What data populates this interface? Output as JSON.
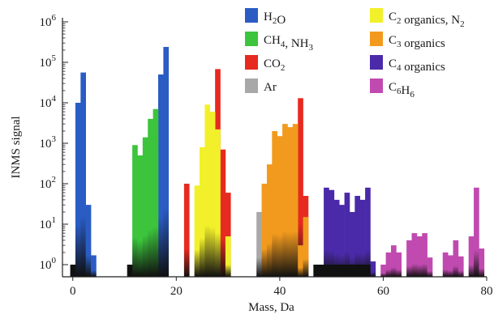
{
  "chart_data": {
    "type": "bar",
    "xlabel": "Mass, Da",
    "ylabel": "INMS signal",
    "xlim": [
      -2,
      80
    ],
    "ylim_log10": [
      -0.3,
      6.1
    ],
    "y_scale": "log",
    "x_ticks": [
      0,
      20,
      40,
      60,
      80
    ],
    "y_tick_labels": [
      {
        "exp": 0,
        "base": "10",
        "sup": "0"
      },
      {
        "exp": 1,
        "base": "10",
        "sup": "1"
      },
      {
        "exp": 2,
        "base": "10",
        "sup": "2"
      },
      {
        "exp": 3,
        "base": "10",
        "sup": "3"
      },
      {
        "exp": 4,
        "base": "10",
        "sup": "4"
      },
      {
        "exp": 5,
        "base": "10",
        "sup": "5"
      },
      {
        "exp": 6,
        "base": "10",
        "sup": "6"
      }
    ],
    "legend_position": "top-right",
    "legend": [
      {
        "key": "h2o",
        "parts": [
          [
            "H",
            "n"
          ],
          [
            "2",
            "sub"
          ],
          [
            "O",
            "n"
          ]
        ],
        "color": "#2a5cc4"
      },
      {
        "key": "ch4nh3",
        "parts": [
          [
            "CH",
            "n"
          ],
          [
            "4",
            "sub"
          ],
          [
            ", NH",
            "n"
          ],
          [
            "3",
            "sub"
          ]
        ],
        "color": "#3cc43c"
      },
      {
        "key": "co2",
        "parts": [
          [
            "CO",
            "n"
          ],
          [
            "2",
            "sub"
          ]
        ],
        "color": "#e62a20"
      },
      {
        "key": "ar",
        "parts": [
          [
            "Ar",
            "n"
          ]
        ],
        "color": "#a8a8a8"
      },
      {
        "key": "c2",
        "parts": [
          [
            "C",
            "n"
          ],
          [
            "2",
            "sub"
          ],
          [
            " organics, N",
            "n"
          ],
          [
            "2",
            "sub"
          ]
        ],
        "color": "#f2f02a"
      },
      {
        "key": "c3",
        "parts": [
          [
            "C",
            "n"
          ],
          [
            "3",
            "sub"
          ],
          [
            " organics",
            "n"
          ]
        ],
        "color": "#f29a1e"
      },
      {
        "key": "c4",
        "parts": [
          [
            "C",
            "n"
          ],
          [
            "4",
            "sub"
          ],
          [
            " organics",
            "n"
          ]
        ],
        "color": "#4a2aa8"
      },
      {
        "key": "c6h6",
        "parts": [
          [
            "C",
            "n"
          ],
          [
            "6",
            "sub"
          ],
          [
            "H",
            "n"
          ],
          [
            "6",
            "sub"
          ]
        ],
        "color": "#c04ab0"
      }
    ],
    "series": [
      {
        "name": "H2O",
        "color": "#2a5cc4",
        "points": [
          [
            1,
            10000
          ],
          [
            2,
            56000
          ],
          [
            3,
            30
          ],
          [
            4,
            1.7
          ],
          [
            16,
            2000
          ],
          [
            17,
            50000
          ],
          [
            18,
            240000
          ]
        ]
      },
      {
        "name": "CH4, NH3",
        "color": "#3cc43c",
        "points": [
          [
            12,
            900
          ],
          [
            13,
            500
          ],
          [
            14,
            1400
          ],
          [
            15,
            4000
          ],
          [
            16,
            7000
          ]
        ]
      },
      {
        "name": "CO2",
        "color": "#e62a20",
        "points": [
          [
            22,
            100
          ],
          [
            28,
            68000
          ],
          [
            29,
            700
          ],
          [
            30,
            60
          ],
          [
            44,
            13000
          ],
          [
            45,
            50
          ]
        ]
      },
      {
        "name": "Ar",
        "color": "#a8a8a8",
        "points": [
          [
            36,
            20
          ],
          [
            38,
            8
          ],
          [
            40,
            300
          ]
        ]
      },
      {
        "name": "C2 organics, N2",
        "color": "#f2f02a",
        "points": [
          [
            24,
            90
          ],
          [
            25,
            800
          ],
          [
            26,
            9000
          ],
          [
            27,
            6000
          ],
          [
            28,
            2200
          ],
          [
            30,
            5
          ]
        ]
      },
      {
        "name": "C3 organics",
        "color": "#f29a1e",
        "points": [
          [
            37,
            100
          ],
          [
            38,
            300
          ],
          [
            39,
            2000
          ],
          [
            40,
            1500
          ],
          [
            41,
            3000
          ],
          [
            42,
            2500
          ],
          [
            43,
            3000
          ],
          [
            44,
            3
          ],
          [
            45,
            15
          ]
        ]
      },
      {
        "name": "C4 organics",
        "color": "#4a2aa8",
        "points": [
          [
            48,
            1
          ],
          [
            49,
            80
          ],
          [
            50,
            70
          ],
          [
            51,
            40
          ],
          [
            52,
            30
          ],
          [
            53,
            60
          ],
          [
            54,
            20
          ],
          [
            55,
            50
          ],
          [
            56,
            40
          ],
          [
            57,
            80
          ],
          [
            58,
            1.2
          ]
        ]
      },
      {
        "name": "C6H6",
        "color": "#c04ab0",
        "points": [
          [
            60,
            1
          ],
          [
            61,
            2
          ],
          [
            62,
            3
          ],
          [
            63,
            2
          ],
          [
            65,
            4
          ],
          [
            66,
            6
          ],
          [
            67,
            5
          ],
          [
            68,
            6
          ],
          [
            69,
            1.5
          ],
          [
            72,
            2
          ],
          [
            73,
            1.7
          ],
          [
            74,
            4
          ],
          [
            75,
            1.6
          ],
          [
            77,
            5
          ],
          [
            78,
            80
          ],
          [
            79,
            2.5
          ]
        ]
      },
      {
        "name": "",
        "color": "#111111",
        "points": [
          [
            0,
            1
          ],
          [
            11,
            1
          ],
          [
            47,
            1
          ],
          [
            48,
            1
          ],
          [
            49,
            1
          ],
          [
            50,
            1
          ],
          [
            51,
            1
          ],
          [
            52,
            1
          ],
          [
            53,
            1
          ],
          [
            54,
            1
          ],
          [
            55,
            1
          ],
          [
            56,
            1
          ],
          [
            57,
            1
          ]
        ]
      }
    ]
  }
}
